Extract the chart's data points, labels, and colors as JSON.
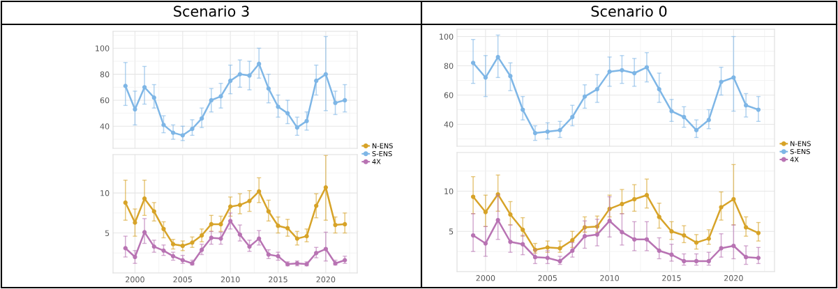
{
  "chart_data": [
    {
      "type": "line",
      "title": "Scenario 3",
      "x": [
        1999,
        2000,
        2001,
        2002,
        2003,
        2004,
        2005,
        2006,
        2007,
        2008,
        2009,
        2010,
        2011,
        2012,
        2013,
        2014,
        2015,
        2016,
        2017,
        2018,
        2019,
        2020,
        2021,
        2022
      ],
      "xlim": [
        1997.7,
        2023.3
      ],
      "xticks": [
        2000,
        2005,
        2010,
        2015,
        2020
      ],
      "ylim": [
        23,
        113
      ],
      "yticks": [
        40,
        60,
        80,
        100
      ],
      "tick_labels": "y",
      "grid": true,
      "marker": "circle",
      "series": [
        {
          "name": "S-ENS",
          "color": "#7eb6e6",
          "values": [
            71,
            53,
            70,
            62,
            41,
            35,
            33,
            38,
            46,
            60,
            63,
            75,
            80,
            79,
            88,
            69,
            55,
            50,
            39,
            44,
            75,
            80,
            58,
            60
          ],
          "errors": [
            [
              56,
              89
            ],
            [
              41,
              67
            ],
            [
              57,
              86
            ],
            [
              54,
              72
            ],
            [
              35,
              48
            ],
            [
              30,
              41
            ],
            [
              29,
              40
            ],
            [
              33,
              45
            ],
            [
              39,
              54
            ],
            [
              51,
              69
            ],
            [
              54,
              73
            ],
            [
              65,
              87
            ],
            [
              70,
              91
            ],
            [
              68,
              90
            ],
            [
              77,
              100
            ],
            [
              58,
              80
            ],
            [
              47,
              64
            ],
            [
              42,
              60
            ],
            [
              33,
              47
            ],
            [
              37,
              51
            ],
            [
              64,
              87
            ],
            [
              52,
              109
            ],
            [
              49,
              67
            ],
            [
              51,
              72
            ]
          ]
        }
      ]
    },
    {
      "type": "line",
      "x": [
        1999,
        2000,
        2001,
        2002,
        2003,
        2004,
        2005,
        2006,
        2007,
        2008,
        2009,
        2010,
        2011,
        2012,
        2013,
        2014,
        2015,
        2016,
        2017,
        2018,
        2019,
        2020,
        2021,
        2022
      ],
      "xlim": [
        1997.7,
        2023.3
      ],
      "xticks": [
        2000,
        2005,
        2010,
        2015,
        2020
      ],
      "ylim": [
        0,
        14.8
      ],
      "yticks": [
        5,
        10
      ],
      "grid": true,
      "marker": "circle",
      "legend": "top right",
      "series": [
        {
          "name": "N-ENS",
          "color": "#d7a328",
          "values": [
            8.8,
            6.3,
            9.3,
            7.7,
            5.5,
            3.6,
            3.4,
            3.8,
            4.7,
            6.1,
            6.1,
            8.3,
            8.5,
            9.0,
            10.2,
            7.7,
            5.9,
            5.6,
            4.3,
            4.6,
            8.4,
            10.7,
            6.0,
            6.1
          ],
          "errors": [
            [
              6.6,
              11.6
            ],
            [
              4.6,
              8.0
            ],
            [
              7.2,
              11.6
            ],
            [
              6.5,
              8.8
            ],
            [
              4.4,
              6.4
            ],
            [
              3.0,
              4.2
            ],
            [
              2.8,
              4.0
            ],
            [
              3.2,
              4.5
            ],
            [
              3.9,
              5.5
            ],
            [
              5.2,
              7.2
            ],
            [
              5.2,
              7.1
            ],
            [
              7.1,
              9.5
            ],
            [
              7.4,
              9.9
            ],
            [
              7.7,
              10.3
            ],
            [
              8.8,
              11.9
            ],
            [
              6.5,
              9.1
            ],
            [
              5.0,
              7.0
            ],
            [
              4.6,
              6.7
            ],
            [
              3.5,
              5.2
            ],
            [
              3.9,
              5.5
            ],
            [
              6.9,
              9.9
            ],
            [
              6.6,
              14.7
            ],
            [
              5.0,
              7.0
            ],
            [
              5.0,
              7.5
            ]
          ]
        },
        {
          "name": "4X",
          "color": "#b873b3",
          "values": [
            3.1,
            2.0,
            5.1,
            3.3,
            2.8,
            2.1,
            1.6,
            1.2,
            2.9,
            4.4,
            4.3,
            6.5,
            4.8,
            3.3,
            4.3,
            2.3,
            2.1,
            1.1,
            1.2,
            1.1,
            2.5,
            3.0,
            1.2,
            1.6
          ],
          "errors": [
            [
              2.0,
              4.6
            ],
            [
              1.2,
              2.8
            ],
            [
              3.7,
              6.8
            ],
            [
              2.6,
              4.1
            ],
            [
              2.2,
              3.5
            ],
            [
              1.6,
              2.6
            ],
            [
              1.2,
              2.2
            ],
            [
              1.0,
              1.6
            ],
            [
              2.3,
              3.6
            ],
            [
              3.6,
              5.2
            ],
            [
              3.6,
              5.1
            ],
            [
              5.5,
              7.5
            ],
            [
              4.0,
              6.0
            ],
            [
              2.7,
              4.1
            ],
            [
              3.5,
              5.3
            ],
            [
              1.8,
              2.9
            ],
            [
              1.6,
              2.6
            ],
            [
              0.9,
              1.4
            ],
            [
              0.9,
              1.5
            ],
            [
              0.9,
              1.4
            ],
            [
              1.9,
              3.2
            ],
            [
              1.5,
              5.1
            ],
            [
              1.0,
              1.6
            ],
            [
              1.2,
              2.1
            ]
          ]
        }
      ]
    },
    {
      "type": "line",
      "title": "Scenario 0",
      "x": [
        1999,
        2000,
        2001,
        2002,
        2003,
        2004,
        2005,
        2006,
        2007,
        2008,
        2009,
        2010,
        2011,
        2012,
        2013,
        2014,
        2015,
        2016,
        2017,
        2018,
        2019,
        2020,
        2021,
        2022
      ],
      "xlim": [
        1997.7,
        2023.3
      ],
      "xticks": [
        2000,
        2005,
        2010,
        2015,
        2020
      ],
      "ylim": [
        25,
        105
      ],
      "yticks": [
        40,
        60,
        80,
        100
      ],
      "tick_labels": "y",
      "grid": true,
      "marker": "circle",
      "series": [
        {
          "name": "S-ENS",
          "color": "#7eb6e6",
          "values": [
            82,
            72,
            86,
            73,
            50,
            34,
            35,
            36,
            45,
            59,
            64,
            76,
            77,
            75,
            79,
            64,
            49,
            45,
            36,
            43,
            69,
            72,
            53,
            50
          ],
          "errors": [
            [
              68,
              98
            ],
            [
              59,
              87
            ],
            [
              72,
              101
            ],
            [
              63,
              82
            ],
            [
              43,
              59
            ],
            [
              29,
              39
            ],
            [
              30,
              41
            ],
            [
              31,
              42
            ],
            [
              39,
              53
            ],
            [
              51,
              67
            ],
            [
              55,
              74
            ],
            [
              66,
              86
            ],
            [
              68,
              87
            ],
            [
              66,
              85
            ],
            [
              69,
              89
            ],
            [
              55,
              75
            ],
            [
              42,
              57
            ],
            [
              38,
              52
            ],
            [
              31,
              43
            ],
            [
              37,
              50
            ],
            [
              60,
              79
            ],
            [
              49,
              100
            ],
            [
              45,
              61
            ],
            [
              42,
              59
            ]
          ]
        }
      ]
    },
    {
      "type": "line",
      "x": [
        1999,
        2000,
        2001,
        2002,
        2003,
        2004,
        2005,
        2006,
        2007,
        2008,
        2009,
        2010,
        2011,
        2012,
        2013,
        2014,
        2015,
        2016,
        2017,
        2018,
        2019,
        2020,
        2021,
        2022
      ],
      "xlim": [
        1997.7,
        2023.3
      ],
      "xticks": [
        2000,
        2005,
        2010,
        2015,
        2020
      ],
      "ylim": [
        0,
        14.8
      ],
      "yticks": [
        5,
        10
      ],
      "grid": true,
      "marker": "circle",
      "legend": "top right",
      "series": [
        {
          "name": "N-ENS",
          "color": "#d7a328",
          "values": [
            9.3,
            7.4,
            9.6,
            7.1,
            5.2,
            2.7,
            3.0,
            2.9,
            3.9,
            5.5,
            5.6,
            7.8,
            8.4,
            9.0,
            9.5,
            6.8,
            5.0,
            4.5,
            3.6,
            4.1,
            8.0,
            9.0,
            5.5,
            4.8
          ],
          "errors": [
            [
              7.2,
              11.8
            ],
            [
              5.6,
              9.5
            ],
            [
              7.5,
              12.0
            ],
            [
              5.8,
              8.7
            ],
            [
              4.4,
              6.7
            ],
            [
              2.3,
              3.5
            ],
            [
              2.4,
              3.8
            ],
            [
              2.4,
              3.8
            ],
            [
              3.0,
              5.0
            ],
            [
              4.9,
              6.8
            ],
            [
              4.9,
              6.9
            ],
            [
              6.8,
              9.5
            ],
            [
              7.2,
              10.2
            ],
            [
              7.5,
              10.8
            ],
            [
              7.9,
              11.5
            ],
            [
              5.4,
              8.5
            ],
            [
              4.0,
              6.2
            ],
            [
              3.6,
              5.7
            ],
            [
              2.8,
              4.6
            ],
            [
              3.4,
              5.2
            ],
            [
              6.4,
              9.9
            ],
            [
              5.8,
              13.3
            ],
            [
              4.4,
              6.8
            ],
            [
              3.8,
              6.1
            ]
          ]
        },
        {
          "name": "4X",
          "color": "#b873b3",
          "values": [
            4.5,
            3.5,
            6.4,
            3.7,
            3.4,
            1.8,
            1.7,
            1.3,
            2.6,
            4.4,
            4.6,
            6.3,
            4.9,
            4.0,
            4.0,
            2.6,
            2.1,
            1.3,
            1.3,
            1.3,
            2.9,
            3.2,
            1.8,
            1.7
          ],
          "errors": [
            [
              2.5,
              7.2
            ],
            [
              1.9,
              5.6
            ],
            [
              4.0,
              9.5
            ],
            [
              2.4,
              5.8
            ],
            [
              2.1,
              4.5
            ],
            [
              1.0,
              2.7
            ],
            [
              1.0,
              2.6
            ],
            [
              0.9,
              1.9
            ],
            [
              1.8,
              3.6
            ],
            [
              2.9,
              6.3
            ],
            [
              3.2,
              6.5
            ],
            [
              4.3,
              9.3
            ],
            [
              3.3,
              7.2
            ],
            [
              2.6,
              6.2
            ],
            [
              2.6,
              6.2
            ],
            [
              1.6,
              4.2
            ],
            [
              1.3,
              3.4
            ],
            [
              0.8,
              2.2
            ],
            [
              0.8,
              2.2
            ],
            [
              0.8,
              2.4
            ],
            [
              1.8,
              4.7
            ],
            [
              1.6,
              5.8
            ],
            [
              0.9,
              3.2
            ],
            [
              1.0,
              3.0
            ]
          ]
        }
      ]
    }
  ]
}
